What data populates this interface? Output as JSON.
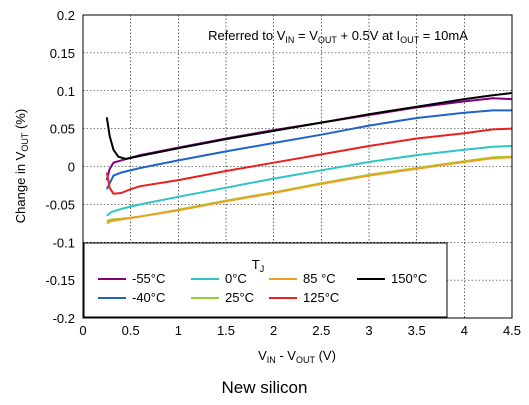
{
  "chart_data": {
    "type": "line",
    "annotation": {
      "text": "Referred to V",
      "sub1": "IN",
      "mid1": " = V",
      "sub2": "OUT",
      "mid2": " + 0.5V at I",
      "sub3": "OUT",
      "end": " = 10mA"
    },
    "xlabel": {
      "main": "V",
      "sub1": "IN",
      "mid": " - V",
      "sub2": "OUT",
      "end": " (V)"
    },
    "ylabel": {
      "main": "Change in V",
      "sub": "OUT",
      "end": " (%)"
    },
    "xlim": [
      0,
      4.5
    ],
    "ylim": [
      -0.2,
      0.2
    ],
    "x_ticks": [
      "0",
      "0.5",
      "1",
      "1.5",
      "2",
      "2.5",
      "3",
      "3.5",
      "4",
      "4.5"
    ],
    "y_ticks": [
      "0.2",
      "0.15",
      "0.1",
      "0.05",
      "0",
      "-0.05",
      "-0.1",
      "-0.15",
      "-0.2"
    ],
    "grid": true,
    "legend": {
      "title": "T",
      "title_sub": "J",
      "placement": "bottom-left"
    },
    "series": [
      {
        "name": "-55°C",
        "color": "#800080",
        "points": [
          [
            0.25,
            -0.018
          ],
          [
            0.28,
            -0.003
          ],
          [
            0.32,
            0.005
          ],
          [
            0.4,
            0.008
          ],
          [
            0.6,
            0.015
          ],
          [
            1,
            0.025
          ],
          [
            1.5,
            0.037
          ],
          [
            2,
            0.048
          ],
          [
            2.5,
            0.058
          ],
          [
            3,
            0.068
          ],
          [
            3.5,
            0.078
          ],
          [
            4,
            0.086
          ],
          [
            4.3,
            0.09
          ],
          [
            4.5,
            0.089
          ]
        ]
      },
      {
        "name": "-40°C",
        "color": "#1e64c8",
        "points": [
          [
            0.25,
            -0.03
          ],
          [
            0.28,
            -0.022
          ],
          [
            0.32,
            -0.012
          ],
          [
            0.4,
            -0.008
          ],
          [
            0.6,
            -0.002
          ],
          [
            1,
            0.008
          ],
          [
            1.5,
            0.02
          ],
          [
            2,
            0.031
          ],
          [
            2.5,
            0.042
          ],
          [
            3,
            0.054
          ],
          [
            3.5,
            0.064
          ],
          [
            4,
            0.071
          ],
          [
            4.3,
            0.074
          ],
          [
            4.5,
            0.074
          ]
        ]
      },
      {
        "name": "0°C",
        "color": "#2ec4c4",
        "points": [
          [
            0.25,
            -0.065
          ],
          [
            0.3,
            -0.06
          ],
          [
            0.4,
            -0.056
          ],
          [
            0.6,
            -0.05
          ],
          [
            1,
            -0.04
          ],
          [
            1.5,
            -0.028
          ],
          [
            2,
            -0.016
          ],
          [
            2.5,
            -0.005
          ],
          [
            3,
            0.006
          ],
          [
            3.5,
            0.015
          ],
          [
            4,
            0.022
          ],
          [
            4.3,
            0.026
          ],
          [
            4.5,
            0.027
          ]
        ]
      },
      {
        "name": "25°C",
        "color": "#99cc33",
        "points": [
          [
            0.25,
            -0.072
          ],
          [
            0.3,
            -0.07
          ],
          [
            0.4,
            -0.069
          ],
          [
            0.6,
            -0.066
          ],
          [
            1,
            -0.057
          ],
          [
            1.5,
            -0.045
          ],
          [
            2,
            -0.034
          ],
          [
            2.5,
            -0.022
          ],
          [
            3,
            -0.011
          ],
          [
            3.5,
            -0.002
          ],
          [
            4,
            0.007
          ],
          [
            4.3,
            0.012
          ],
          [
            4.5,
            0.013
          ]
        ]
      },
      {
        "name": "85 °C",
        "color": "#f0a020",
        "points": [
          [
            0.25,
            -0.075
          ],
          [
            0.3,
            -0.072
          ],
          [
            0.4,
            -0.07
          ],
          [
            0.6,
            -0.066
          ],
          [
            1,
            -0.058
          ],
          [
            1.5,
            -0.046
          ],
          [
            2,
            -0.035
          ],
          [
            2.5,
            -0.023
          ],
          [
            3,
            -0.012
          ],
          [
            3.5,
            -0.003
          ],
          [
            4,
            0.006
          ],
          [
            4.3,
            0.011
          ],
          [
            4.5,
            0.012
          ]
        ]
      },
      {
        "name": "125°C",
        "color": "#e82020",
        "points": [
          [
            0.25,
            -0.008
          ],
          [
            0.28,
            -0.028
          ],
          [
            0.32,
            -0.036
          ],
          [
            0.4,
            -0.035
          ],
          [
            0.5,
            -0.03
          ],
          [
            0.6,
            -0.026
          ],
          [
            1,
            -0.018
          ],
          [
            1.5,
            -0.006
          ],
          [
            2,
            0.005
          ],
          [
            2.5,
            0.016
          ],
          [
            3,
            0.027
          ],
          [
            3.5,
            0.037
          ],
          [
            4,
            0.044
          ],
          [
            4.3,
            0.049
          ],
          [
            4.5,
            0.05
          ]
        ]
      },
      {
        "name": "150°C",
        "color": "#000000",
        "points": [
          [
            0.25,
            0.065
          ],
          [
            0.28,
            0.04
          ],
          [
            0.32,
            0.022
          ],
          [
            0.37,
            0.013
          ],
          [
            0.45,
            0.01
          ],
          [
            0.6,
            0.014
          ],
          [
            1,
            0.024
          ],
          [
            1.5,
            0.036
          ],
          [
            2,
            0.047
          ],
          [
            2.5,
            0.058
          ],
          [
            3,
            0.069
          ],
          [
            3.5,
            0.079
          ],
          [
            4,
            0.089
          ],
          [
            4.3,
            0.094
          ],
          [
            4.5,
            0.097
          ]
        ]
      }
    ]
  },
  "caption": "New silicon"
}
